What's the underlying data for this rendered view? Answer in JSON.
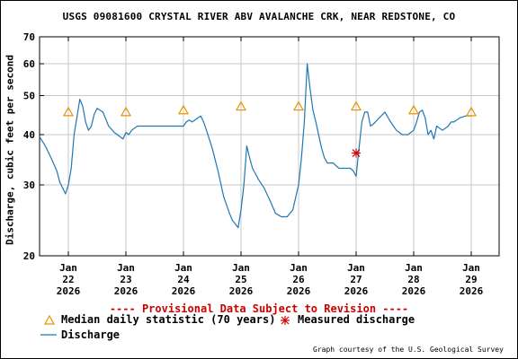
{
  "chart_data": {
    "type": "line",
    "title": "USGS 09081600 CRYSTAL RIVER ABV AVALANCHE CRK, NEAR REDSTONE, CO",
    "ylabel": "Discharge, cubic feet per second",
    "y_scale": "log",
    "ylim": [
      20,
      70
    ],
    "y_ticks": [
      20,
      30,
      40,
      50,
      60,
      70
    ],
    "x_ticks": [
      {
        "line1": "Jan",
        "line2": "22",
        "line3": "2026",
        "day": 22
      },
      {
        "line1": "Jan",
        "line2": "23",
        "line3": "2026",
        "day": 23
      },
      {
        "line1": "Jan",
        "line2": "24",
        "line3": "2026",
        "day": 24
      },
      {
        "line1": "Jan",
        "line2": "25",
        "line3": "2026",
        "day": 25
      },
      {
        "line1": "Jan",
        "line2": "26",
        "line3": "2026",
        "day": 26
      },
      {
        "line1": "Jan",
        "line2": "27",
        "line3": "2026",
        "day": 27
      },
      {
        "line1": "Jan",
        "line2": "28",
        "line3": "2026",
        "day": 28
      },
      {
        "line1": "Jan",
        "line2": "29",
        "line3": "2026",
        "day": 29
      }
    ],
    "xlim_days": [
      21.5,
      29.5
    ],
    "grid": true,
    "series": [
      {
        "name": "Discharge",
        "color": "#1f77b4",
        "x_days": [
          21.5,
          21.6,
          21.7,
          21.8,
          21.85,
          21.9,
          21.95,
          22.0,
          22.05,
          22.1,
          22.2,
          22.25,
          22.3,
          22.35,
          22.4,
          22.45,
          22.5,
          22.6,
          22.7,
          22.8,
          22.85,
          22.9,
          22.95,
          23.0,
          23.05,
          23.1,
          23.2,
          23.3,
          23.4,
          23.6,
          23.8,
          24.0,
          24.05,
          24.1,
          24.15,
          24.2,
          24.25,
          24.3,
          24.35,
          24.4,
          24.5,
          24.6,
          24.7,
          24.8,
          24.85,
          24.9,
          24.95,
          25.0,
          25.05,
          25.1,
          25.15,
          25.2,
          25.25,
          25.3,
          25.4,
          25.5,
          25.6,
          25.7,
          25.8,
          25.9,
          26.0,
          26.05,
          26.1,
          26.15,
          26.2,
          26.25,
          26.3,
          26.4,
          26.45,
          26.5,
          26.6,
          26.7,
          26.8,
          26.9,
          26.95,
          27.0,
          27.05,
          27.1,
          27.15,
          27.2,
          27.25,
          27.3,
          27.4,
          27.5,
          27.6,
          27.7,
          27.8,
          27.9,
          27.95,
          28.0,
          28.05,
          28.1,
          28.15,
          28.2,
          28.25,
          28.3,
          28.35,
          28.4,
          28.5,
          28.6,
          28.65,
          28.7,
          28.8,
          28.9,
          29.0
        ],
        "values": [
          39.5,
          37.5,
          35,
          32.5,
          30.5,
          29.5,
          28.5,
          30,
          33,
          40,
          49,
          47,
          43,
          41,
          42,
          45,
          46.5,
          45.5,
          42,
          40.5,
          40,
          39.5,
          39,
          40.5,
          40,
          41,
          42,
          42,
          42,
          42,
          42,
          42,
          43,
          43.5,
          43,
          43.5,
          44,
          44.5,
          43,
          41,
          37,
          32.5,
          28,
          25.5,
          24.5,
          24,
          23.5,
          26,
          30,
          37.5,
          35,
          33,
          32,
          31,
          29.5,
          27.5,
          25.5,
          25,
          25,
          26,
          30,
          35,
          43,
          60,
          52,
          46,
          43,
          37,
          35,
          34,
          34,
          33,
          33,
          33,
          32.5,
          31.5,
          37,
          43,
          45.5,
          45.5,
          42,
          42.5,
          44,
          45.5,
          43,
          41,
          40,
          40,
          40.5,
          41,
          43,
          45.5,
          46,
          44,
          40,
          41,
          39,
          42,
          41,
          42,
          43,
          43,
          44,
          44.5,
          44.5
        ]
      }
    ],
    "median_daily_statistic": {
      "name": "Median daily statistic (70 years)",
      "color": "#e69500",
      "points": [
        {
          "day": 22.0,
          "value": 45.5
        },
        {
          "day": 23.0,
          "value": 45.5
        },
        {
          "day": 24.0,
          "value": 46
        },
        {
          "day": 25.0,
          "value": 47
        },
        {
          "day": 26.0,
          "value": 47
        },
        {
          "day": 27.0,
          "value": 47
        },
        {
          "day": 28.0,
          "value": 46
        },
        {
          "day": 29.0,
          "value": 45.5
        }
      ]
    },
    "measured_discharge": {
      "name": "Measured discharge",
      "color": "#d40000",
      "points": [
        {
          "day": 27.0,
          "value": 36
        }
      ]
    }
  },
  "provisional_note": "---- Provisional Data Subject to Revision ----",
  "provisional_color": "#cc0000",
  "legend": {
    "median_label": "Median daily statistic (70 years)",
    "measured_label": "Measured discharge",
    "discharge_label": "Discharge"
  },
  "credit": "Graph courtesy of the U.S. Geological Survey"
}
